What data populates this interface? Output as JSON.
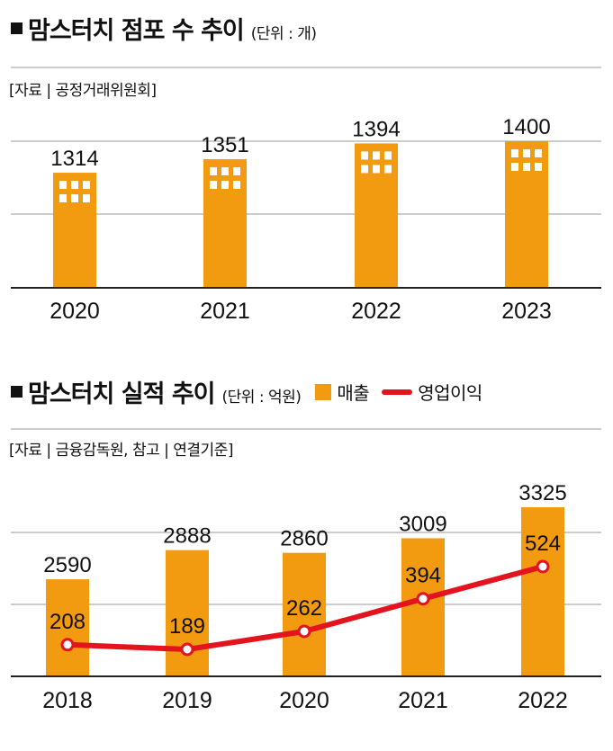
{
  "chart1": {
    "title": "맘스터치 점포 수 추이",
    "unit": "(단위 : 개)",
    "source": "[자료 | 공정거래위원회]"
  },
  "chart2": {
    "title": "맘스터치 실적 추이",
    "unit": "(단위 : 억원)",
    "legend_bar": "매출",
    "legend_line": "영업이익",
    "source": "[자료 | 금융감독원, 참고 | 연결기준]"
  },
  "colors": {
    "bar": "#F29A10",
    "line": "#E3141E",
    "grid": "#999999",
    "axis": "#222222"
  },
  "chart_data": [
    {
      "type": "bar",
      "title": "맘스터치 점포 수 추이",
      "unit": "개",
      "categories": [
        "2020",
        "2021",
        "2022",
        "2023"
      ],
      "series": [
        {
          "values": [
            1314,
            1351,
            1394,
            1400
          ]
        }
      ],
      "labels": [
        "1314",
        "1351",
        "1394",
        "1400"
      ],
      "ylim": [
        1000,
        1420
      ],
      "grid": true,
      "bar_icon": "building-windows-icon"
    },
    {
      "type": "bar",
      "title": "맘스터치 실적 추이",
      "unit": "억원",
      "categories": [
        "2018",
        "2019",
        "2020",
        "2021",
        "2022"
      ],
      "series": [
        {
          "name": "매출",
          "type": "bar",
          "values": [
            2590,
            2888,
            2860,
            3009,
            3325
          ]
        },
        {
          "name": "영업이익",
          "type": "line",
          "values": [
            208,
            189,
            262,
            394,
            524
          ]
        }
      ],
      "bar_labels": [
        "2590",
        "2888",
        "2860",
        "3009",
        "3325"
      ],
      "line_labels": [
        "208",
        "189",
        "262",
        "394",
        "524"
      ],
      "grid": true,
      "legend": "top"
    }
  ]
}
